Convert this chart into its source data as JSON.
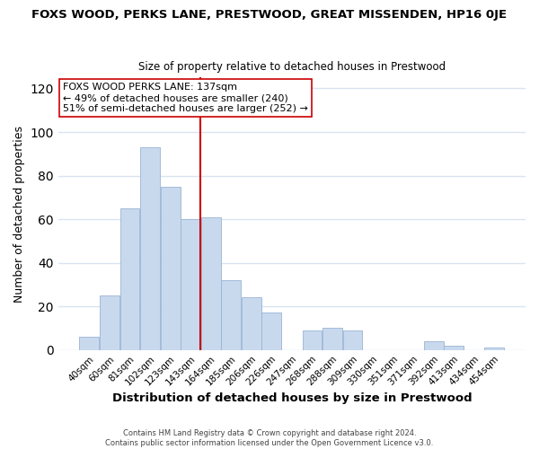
{
  "title": "FOXS WOOD, PERKS LANE, PRESTWOOD, GREAT MISSENDEN, HP16 0JE",
  "subtitle": "Size of property relative to detached houses in Prestwood",
  "xlabel": "Distribution of detached houses by size in Prestwood",
  "ylabel": "Number of detached properties",
  "bar_color": "#c8d9ee",
  "bar_edge_color": "#9ab4d4",
  "categories": [
    "40sqm",
    "60sqm",
    "81sqm",
    "102sqm",
    "123sqm",
    "143sqm",
    "164sqm",
    "185sqm",
    "206sqm",
    "226sqm",
    "247sqm",
    "268sqm",
    "288sqm",
    "309sqm",
    "330sqm",
    "351sqm",
    "371sqm",
    "392sqm",
    "413sqm",
    "434sqm",
    "454sqm"
  ],
  "values": [
    6,
    25,
    65,
    93,
    75,
    60,
    61,
    32,
    24,
    17,
    0,
    9,
    10,
    9,
    0,
    0,
    0,
    4,
    2,
    0,
    1
  ],
  "vline_color": "#cc0000",
  "annotation_text": "FOXS WOOD PERKS LANE: 137sqm\n← 49% of detached houses are smaller (240)\n51% of semi-detached houses are larger (252) →",
  "annotation_box_color": "white",
  "annotation_box_edge_color": "#cc0000",
  "ylim": [
    0,
    125
  ],
  "yticks": [
    0,
    20,
    40,
    60,
    80,
    100,
    120
  ],
  "footer_line1": "Contains HM Land Registry data © Crown copyright and database right 2024.",
  "footer_line2": "Contains public sector information licensed under the Open Government Licence v3.0.",
  "background_color": "#ffffff",
  "grid_color": "#d8e4f0",
  "figsize": [
    6.0,
    5.0
  ],
  "dpi": 100
}
